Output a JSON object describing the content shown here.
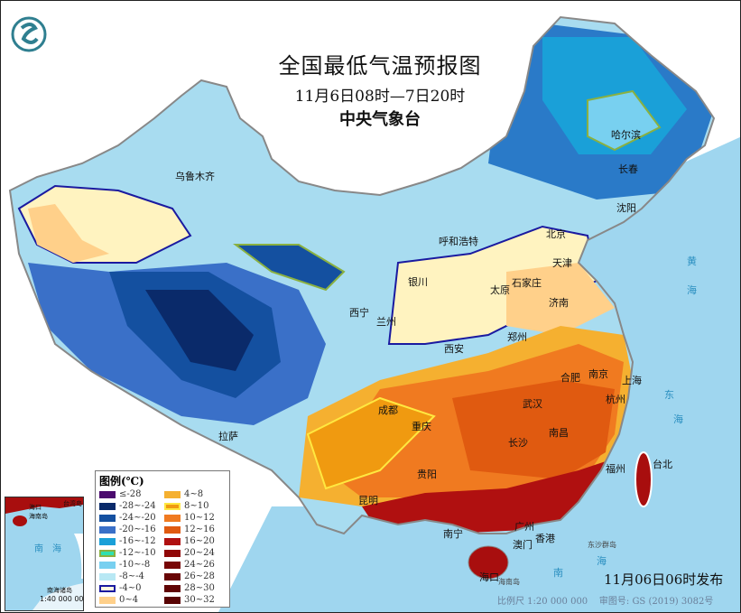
{
  "header": {
    "title": "全国最低气温预报图",
    "period": "11月6日08时—7日20时",
    "issuer": "中央气象台",
    "logo_icon": "cma-logo-icon"
  },
  "cities": [
    "乌鲁木齐",
    "哈尔滨",
    "长春",
    "沈阳",
    "北京",
    "天津",
    "呼和浩特",
    "石家庄",
    "太原",
    "济南",
    "银川",
    "西宁",
    "兰州",
    "西安",
    "郑州",
    "合肥",
    "南京",
    "上海",
    "杭州",
    "武汉",
    "成都",
    "重庆",
    "长沙",
    "南昌",
    "福州",
    "台北",
    "贵阳",
    "昆明",
    "南宁",
    "广州",
    "澳门",
    "香港",
    "海口",
    "拉萨"
  ],
  "seas": [
    "黄",
    "海",
    "东",
    "海",
    "南",
    "海",
    "东沙群岛",
    "海南岛"
  ],
  "legend": {
    "title": "图例(℃)",
    "items": [
      {
        "label": "≤-28",
        "color": "#4b0a6e"
      },
      {
        "label": "-28~-24",
        "color": "#0a2a6a"
      },
      {
        "label": "-24~-20",
        "color": "#1450a0"
      },
      {
        "label": "-20~-16",
        "color": "#3a70c8"
      },
      {
        "label": "-16~-12",
        "color": "#1aa0d8"
      },
      {
        "label": "-12~-10",
        "color": "#30e0b0",
        "border": "#8ab040"
      },
      {
        "label": "-10~-8",
        "color": "#78d0f0"
      },
      {
        "label": "-8~-4",
        "color": "#b8e8f4"
      },
      {
        "label": "-4~0",
        "color": "#fff8e0",
        "border": "#1a1aa0"
      },
      {
        "label": "0~4",
        "color": "#ffd08a"
      },
      {
        "label": "4~8",
        "color": "#f5b030"
      },
      {
        "label": "8~10",
        "color": "#f09a10",
        "border": "#ffe840"
      },
      {
        "label": "10~12",
        "color": "#f07a20"
      },
      {
        "label": "12~16",
        "color": "#e05a10"
      },
      {
        "label": "16~20",
        "color": "#b01010"
      },
      {
        "label": "20~24",
        "color": "#900808"
      },
      {
        "label": "24~26",
        "color": "#780606"
      },
      {
        "label": "26~28",
        "color": "#680505"
      },
      {
        "label": "28~30",
        "color": "#600404"
      },
      {
        "label": "30~32",
        "color": "#580303"
      }
    ]
  },
  "inset": {
    "labels": [
      "海口",
      "海南岛",
      "台湾岛",
      "南",
      "海",
      "南海诸岛"
    ],
    "scale": "1:40 000 000"
  },
  "footer": {
    "issued": "11月06日06时发布",
    "scale": "比例尺 1:20 000 000",
    "approval": "审图号: GS (2019) 3082号"
  }
}
